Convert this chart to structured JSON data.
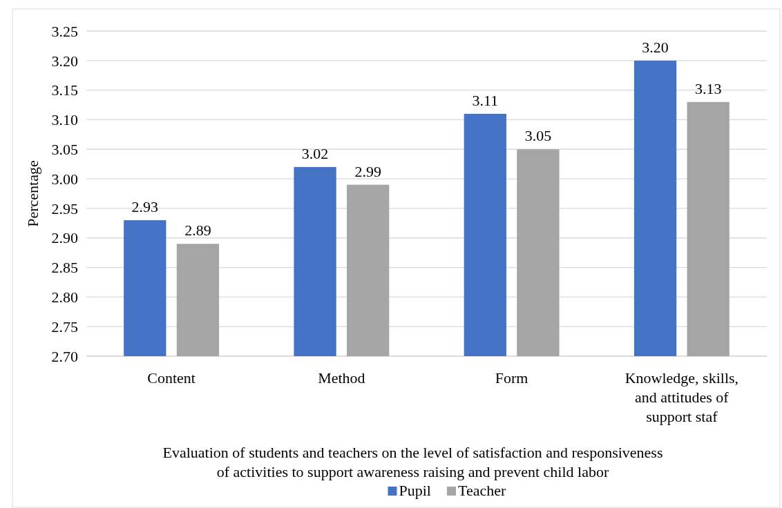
{
  "chart_data": {
    "type": "bar",
    "xlabel": "Evaluation of students and teachers on the level of satisfaction and responsiveness of activities to support awareness raising and prevent child labor",
    "ylabel": "Percentage",
    "categories": [
      "Content",
      "Method",
      "Form",
      "Knowledge, skills, and attitudes of support staf"
    ],
    "series": [
      {
        "name": "Pupil",
        "color": "#4472c4",
        "values": [
          2.93,
          3.02,
          3.11,
          3.2
        ],
        "value_labels": [
          "2.93",
          "3.02",
          "3.11",
          "3.20"
        ]
      },
      {
        "name": "Teacher",
        "color": "#a5a5a5",
        "values": [
          2.89,
          2.99,
          3.05,
          3.13
        ],
        "value_labels": [
          "2.89",
          "2.99",
          "3.05",
          "3.13"
        ]
      }
    ],
    "ylim": [
      2.7,
      3.25
    ],
    "yticks": [
      {
        "value": 2.7,
        "label": "2.70"
      },
      {
        "value": 2.75,
        "label": "2.75"
      },
      {
        "value": 2.8,
        "label": "2.80"
      },
      {
        "value": 2.85,
        "label": "2.85"
      },
      {
        "value": 2.9,
        "label": "2.90"
      },
      {
        "value": 2.95,
        "label": "2.95"
      },
      {
        "value": 3,
        "label": "3.00"
      },
      {
        "value": 3.05,
        "label": "3.05"
      },
      {
        "value": 3.1,
        "label": "3.10"
      },
      {
        "value": 3.15,
        "label": "3.15"
      },
      {
        "value": 3.2,
        "label": "3.20"
      },
      {
        "value": 3.25,
        "label": "3.25"
      }
    ],
    "grid": "y",
    "legend": "bottom"
  }
}
